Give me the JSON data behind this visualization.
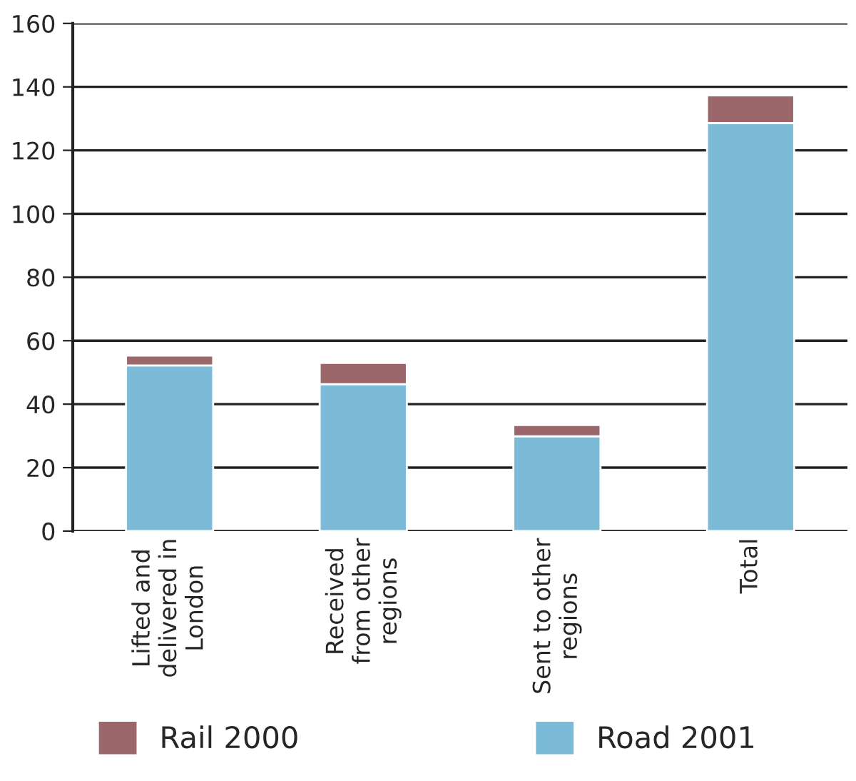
{
  "chart_data": {
    "type": "bar",
    "stacked": true,
    "categories": [
      "Lifted and\ndelivered in\nLondon",
      "Received\nfrom other\nregions",
      "Sent to other\nregions",
      "Total"
    ],
    "series": [
      {
        "name": "Road 2001",
        "color": "#7bbbd8",
        "values": [
          52.2,
          46.3,
          29.9,
          128.6
        ]
      },
      {
        "name": "Rail 2000",
        "color": "#9b676b",
        "values": [
          3.1,
          6.7,
          3.5,
          8.7
        ]
      }
    ],
    "ylim": [
      0,
      160
    ],
    "yticks": [
      0,
      20,
      40,
      60,
      80,
      100,
      120,
      140,
      160
    ],
    "grid": "y",
    "legend": "bottom"
  }
}
